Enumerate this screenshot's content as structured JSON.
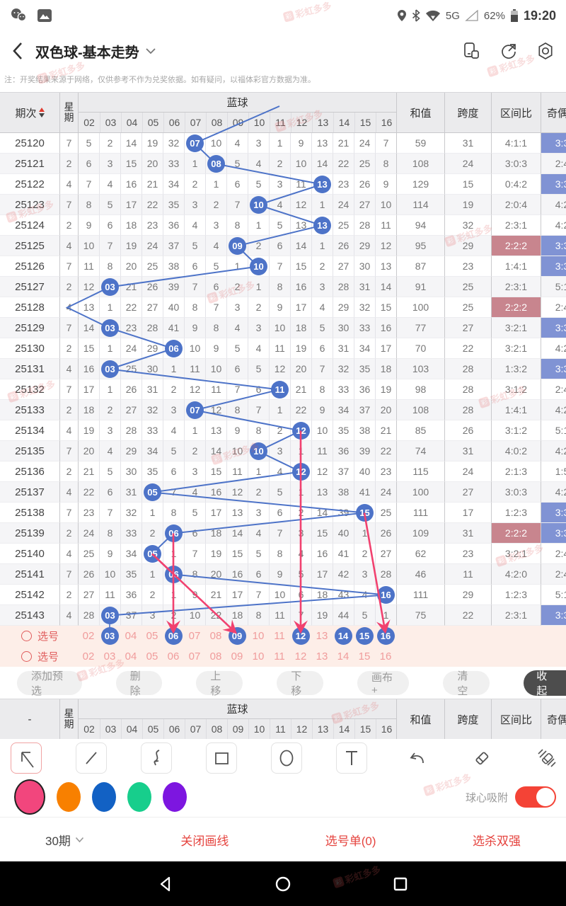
{
  "status_bar": {
    "time": "19:20",
    "battery": "62%",
    "network": "5G"
  },
  "nav": {
    "title": "双色球-基本走势"
  },
  "notice": "注：开奖结果来源于网络，仅供参考不作为兑奖依据。如有疑问，以福体彩官方数据为准。",
  "watermark": {
    "text": "彩虹多多",
    "logo_char": "彩"
  },
  "colors": {
    "ball_blue": "#4d73c8",
    "pink_annotation": "#f1416f",
    "hl_blue": "#8093d4",
    "hl_red": "#c8858e"
  },
  "table": {
    "headers": {
      "period": "期次",
      "week": "星期",
      "blue_ball": "蓝球",
      "sum": "和值",
      "span": "跨度",
      "interval_ratio": "区间比",
      "odd_even": "奇偶"
    },
    "ball_columns": [
      "02",
      "03",
      "04",
      "05",
      "06",
      "07",
      "08",
      "09",
      "10",
      "11",
      "12",
      "13",
      "14",
      "15",
      "16"
    ],
    "prev_ball": 11,
    "rows": [
      {
        "period": "25120",
        "week": "7",
        "cells": [
          "5",
          "2",
          "14",
          "19",
          "32",
          "07",
          "10",
          "4",
          "3",
          "1",
          "9",
          "13",
          "21",
          "24",
          "7"
        ],
        "ball": 7,
        "sum": "59",
        "span": "31",
        "ratio": "4:1:1",
        "ratio_hl": false,
        "oe": "3:3",
        "oe_hl": true
      },
      {
        "period": "25121",
        "week": "2",
        "cells": [
          "6",
          "3",
          "15",
          "20",
          "33",
          "1",
          "08",
          "5",
          "4",
          "2",
          "10",
          "14",
          "22",
          "25",
          "8"
        ],
        "ball": 8,
        "sum": "108",
        "span": "24",
        "ratio": "3:0:3",
        "ratio_hl": false,
        "oe": "2:4",
        "oe_hl": false
      },
      {
        "period": "25122",
        "week": "4",
        "cells": [
          "7",
          "4",
          "16",
          "21",
          "34",
          "2",
          "1",
          "6",
          "5",
          "3",
          "11",
          "13",
          "23",
          "26",
          "9"
        ],
        "ball": 13,
        "sum": "129",
        "span": "15",
        "ratio": "0:4:2",
        "ratio_hl": false,
        "oe": "3:3",
        "oe_hl": true
      },
      {
        "period": "25123",
        "week": "7",
        "cells": [
          "8",
          "5",
          "17",
          "22",
          "35",
          "3",
          "2",
          "7",
          "10",
          "4",
          "12",
          "1",
          "24",
          "27",
          "10"
        ],
        "ball": 10,
        "sum": "114",
        "span": "19",
        "ratio": "2:0:4",
        "ratio_hl": false,
        "oe": "4:2",
        "oe_hl": false
      },
      {
        "period": "25124",
        "week": "2",
        "cells": [
          "9",
          "6",
          "18",
          "23",
          "36",
          "4",
          "3",
          "8",
          "1",
          "5",
          "13",
          "13",
          "25",
          "28",
          "11"
        ],
        "ball": 13,
        "sum": "94",
        "span": "32",
        "ratio": "2:3:1",
        "ratio_hl": false,
        "oe": "4:2",
        "oe_hl": false
      },
      {
        "period": "25125",
        "week": "4",
        "cells": [
          "10",
          "7",
          "19",
          "24",
          "37",
          "5",
          "4",
          "09",
          "2",
          "6",
          "14",
          "1",
          "26",
          "29",
          "12"
        ],
        "ball": 9,
        "sum": "95",
        "span": "29",
        "ratio": "2:2:2",
        "ratio_hl": true,
        "oe": "3:3",
        "oe_hl": true
      },
      {
        "period": "25126",
        "week": "7",
        "cells": [
          "11",
          "8",
          "20",
          "25",
          "38",
          "6",
          "5",
          "1",
          "10",
          "7",
          "15",
          "2",
          "27",
          "30",
          "13"
        ],
        "ball": 10,
        "sum": "87",
        "span": "23",
        "ratio": "1:4:1",
        "ratio_hl": false,
        "oe": "3:3",
        "oe_hl": true
      },
      {
        "period": "25127",
        "week": "2",
        "cells": [
          "12",
          "03",
          "21",
          "26",
          "39",
          "7",
          "6",
          "2",
          "1",
          "8",
          "16",
          "3",
          "28",
          "31",
          "14"
        ],
        "ball": 3,
        "sum": "91",
        "span": "25",
        "ratio": "2:3:1",
        "ratio_hl": false,
        "oe": "5:1",
        "oe_hl": false
      },
      {
        "period": "25128",
        "week": "4",
        "cells": [
          "13",
          "1",
          "22",
          "27",
          "40",
          "8",
          "7",
          "3",
          "2",
          "9",
          "17",
          "4",
          "29",
          "32",
          "15"
        ],
        "ball": 1,
        "sum": "100",
        "span": "25",
        "ratio": "2:2:2",
        "ratio_hl": true,
        "oe": "2:4",
        "oe_hl": false
      },
      {
        "period": "25129",
        "week": "7",
        "cells": [
          "14",
          "03",
          "23",
          "28",
          "41",
          "9",
          "8",
          "4",
          "3",
          "10",
          "18",
          "5",
          "30",
          "33",
          "16"
        ],
        "ball": 3,
        "sum": "77",
        "span": "27",
        "ratio": "3:2:1",
        "ratio_hl": false,
        "oe": "3:3",
        "oe_hl": true
      },
      {
        "period": "25130",
        "week": "2",
        "cells": [
          "15",
          "1",
          "24",
          "29",
          "06",
          "10",
          "9",
          "5",
          "4",
          "11",
          "19",
          "6",
          "31",
          "34",
          "17"
        ],
        "ball": 6,
        "sum": "70",
        "span": "22",
        "ratio": "3:2:1",
        "ratio_hl": false,
        "oe": "4:2",
        "oe_hl": false
      },
      {
        "period": "25131",
        "week": "4",
        "cells": [
          "16",
          "03",
          "25",
          "30",
          "1",
          "11",
          "10",
          "6",
          "5",
          "12",
          "20",
          "7",
          "32",
          "35",
          "18"
        ],
        "ball": 3,
        "sum": "103",
        "span": "28",
        "ratio": "1:3:2",
        "ratio_hl": false,
        "oe": "3:3",
        "oe_hl": true
      },
      {
        "period": "25132",
        "week": "7",
        "cells": [
          "17",
          "1",
          "26",
          "31",
          "2",
          "12",
          "11",
          "7",
          "6",
          "11",
          "21",
          "8",
          "33",
          "36",
          "19"
        ],
        "ball": 11,
        "sum": "98",
        "span": "28",
        "ratio": "3:1:2",
        "ratio_hl": false,
        "oe": "2:4",
        "oe_hl": false
      },
      {
        "period": "25133",
        "week": "2",
        "cells": [
          "18",
          "2",
          "27",
          "32",
          "3",
          "07",
          "12",
          "8",
          "7",
          "1",
          "22",
          "9",
          "34",
          "37",
          "20"
        ],
        "ball": 7,
        "sum": "108",
        "span": "28",
        "ratio": "1:4:1",
        "ratio_hl": false,
        "oe": "4:2",
        "oe_hl": false
      },
      {
        "period": "25134",
        "week": "4",
        "cells": [
          "19",
          "3",
          "28",
          "33",
          "4",
          "1",
          "13",
          "9",
          "8",
          "2",
          "12",
          "10",
          "35",
          "38",
          "21"
        ],
        "ball": 12,
        "sum": "85",
        "span": "26",
        "ratio": "3:1:2",
        "ratio_hl": false,
        "oe": "5:1",
        "oe_hl": false
      },
      {
        "period": "25135",
        "week": "7",
        "cells": [
          "20",
          "4",
          "29",
          "34",
          "5",
          "2",
          "14",
          "10",
          "10",
          "3",
          "1",
          "11",
          "36",
          "39",
          "22"
        ],
        "ball": 10,
        "sum": "74",
        "span": "31",
        "ratio": "4:0:2",
        "ratio_hl": false,
        "oe": "4:2",
        "oe_hl": false
      },
      {
        "period": "25136",
        "week": "2",
        "cells": [
          "21",
          "5",
          "30",
          "35",
          "6",
          "3",
          "15",
          "11",
          "1",
          "4",
          "12",
          "12",
          "37",
          "40",
          "23"
        ],
        "ball": 12,
        "sum": "115",
        "span": "24",
        "ratio": "2:1:3",
        "ratio_hl": false,
        "oe": "1:5",
        "oe_hl": false
      },
      {
        "period": "25137",
        "week": "4",
        "cells": [
          "22",
          "6",
          "31",
          "05",
          "7",
          "4",
          "16",
          "12",
          "2",
          "5",
          "1",
          "13",
          "38",
          "41",
          "24"
        ],
        "ball": 5,
        "sum": "100",
        "span": "27",
        "ratio": "3:0:3",
        "ratio_hl": false,
        "oe": "4:2",
        "oe_hl": false
      },
      {
        "period": "25138",
        "week": "7",
        "cells": [
          "23",
          "7",
          "32",
          "1",
          "8",
          "5",
          "17",
          "13",
          "3",
          "6",
          "2",
          "14",
          "39",
          "15",
          "25"
        ],
        "ball": 15,
        "sum": "111",
        "span": "17",
        "ratio": "1:2:3",
        "ratio_hl": false,
        "oe": "3:3",
        "oe_hl": true
      },
      {
        "period": "25139",
        "week": "2",
        "cells": [
          "24",
          "8",
          "33",
          "2",
          "06",
          "6",
          "18",
          "14",
          "4",
          "7",
          "3",
          "15",
          "40",
          "1",
          "26"
        ],
        "ball": 6,
        "sum": "109",
        "span": "31",
        "ratio": "2:2:2",
        "ratio_hl": true,
        "oe": "3:3",
        "oe_hl": true
      },
      {
        "period": "25140",
        "week": "4",
        "cells": [
          "25",
          "9",
          "34",
          "05",
          "1",
          "7",
          "19",
          "15",
          "5",
          "8",
          "4",
          "16",
          "41",
          "2",
          "27"
        ],
        "ball": 5,
        "sum": "62",
        "span": "23",
        "ratio": "3:2:1",
        "ratio_hl": false,
        "oe": "2:4",
        "oe_hl": false
      },
      {
        "period": "25141",
        "week": "7",
        "cells": [
          "26",
          "10",
          "35",
          "1",
          "06",
          "8",
          "20",
          "16",
          "6",
          "9",
          "5",
          "17",
          "42",
          "3",
          "28"
        ],
        "ball": 6,
        "sum": "46",
        "span": "11",
        "ratio": "4:2:0",
        "ratio_hl": false,
        "oe": "2:4",
        "oe_hl": false
      },
      {
        "period": "25142",
        "week": "2",
        "cells": [
          "27",
          "11",
          "36",
          "2",
          "1",
          "9",
          "21",
          "17",
          "7",
          "10",
          "6",
          "18",
          "43",
          "4",
          "16"
        ],
        "ball": 16,
        "sum": "111",
        "span": "29",
        "ratio": "1:2:3",
        "ratio_hl": false,
        "oe": "5:1",
        "oe_hl": false
      },
      {
        "period": "25143",
        "week": "4",
        "cells": [
          "28",
          "03",
          "37",
          "3",
          "2",
          "10",
          "22",
          "18",
          "8",
          "11",
          "7",
          "19",
          "44",
          "5",
          "1"
        ],
        "ball": 3,
        "sum": "75",
        "span": "22",
        "ratio": "2:3:1",
        "ratio_hl": false,
        "oe": "3:3",
        "oe_hl": true
      }
    ],
    "select_rows": [
      {
        "label": "选号",
        "selected": [
          3,
          6,
          9,
          12,
          14,
          15,
          16
        ]
      },
      {
        "label": "选号",
        "selected": []
      }
    ]
  },
  "annotations": {
    "arrows": [
      {
        "from_period": "25134",
        "to_select": 12
      },
      {
        "from_period": "25139",
        "to_select": 6
      },
      {
        "from_period": "25140",
        "to_select": 9
      },
      {
        "from_period": "25138",
        "to_select": 16
      }
    ],
    "connector": {
      "from_period": "25143",
      "to_select": 3
    }
  },
  "action_bar": {
    "buttons": [
      "添加预选",
      "删除",
      "上移",
      "下移",
      "画布+",
      "清空"
    ],
    "collapse": "收起"
  },
  "pinned_header": {
    "period": "-"
  },
  "color_bar": {
    "swatches": [
      "#f2467d",
      "#f88000",
      "#1261c4",
      "#17ce8c",
      "#7d16e0"
    ],
    "selected_index": 0,
    "snap_label": "球心吸附",
    "snap_on": true
  },
  "footer": {
    "period_select": "30期",
    "close_draw": "关闭画线",
    "ticket": "选号单(0)",
    "kill": "选杀双强"
  }
}
